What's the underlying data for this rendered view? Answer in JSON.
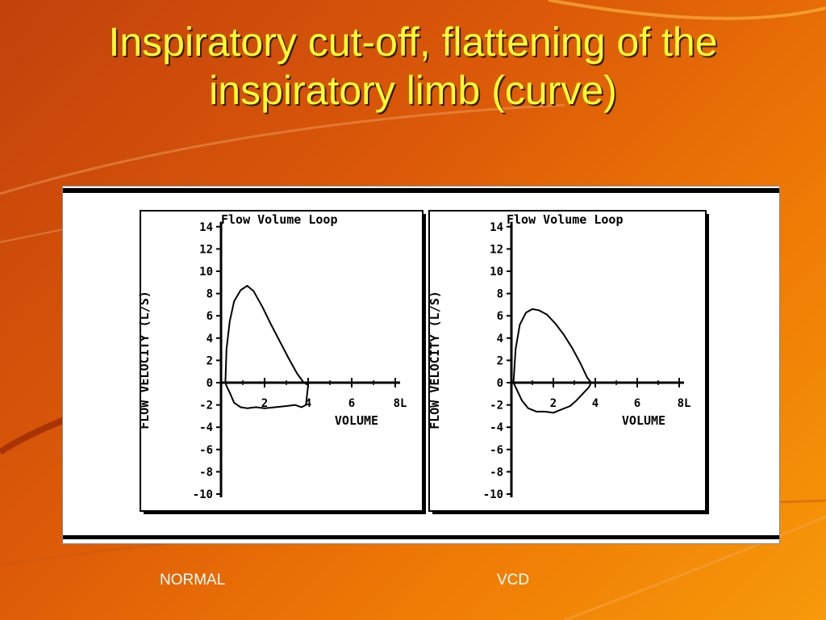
{
  "title": "Inspiratory cut-off, flattening of the inspiratory limb (curve)",
  "captions": {
    "normal": "NORMAL",
    "vcd": "VCD"
  },
  "colors": {
    "title": "#ffff33",
    "background": "#dc5a08",
    "plot_line": "#000000"
  },
  "chart_data": [
    {
      "type": "line",
      "title": "Flow Volume Loop",
      "xlabel": "VOLUME",
      "ylabel": "FLOW VELOCITY (L/S)",
      "xlim": [
        0,
        8
      ],
      "ylim": [
        -10,
        14
      ],
      "x_ticks": [
        "2",
        "4",
        "6",
        "8L"
      ],
      "y_ticks": [
        "14",
        "12",
        "10",
        "8",
        "6",
        "4",
        "2",
        "0",
        "-2",
        "-4",
        "-6",
        "-8",
        "-10"
      ],
      "series": [
        {
          "x": [
            0.2,
            0.25,
            0.4,
            0.6,
            0.9,
            1.2,
            1.5,
            1.9,
            2.3,
            2.7,
            3.1,
            3.5,
            3.8,
            4.0,
            3.9,
            3.7,
            3.4,
            3.0,
            2.5,
            2.0,
            1.6,
            1.2,
            0.9,
            0.6,
            0.4,
            0.25,
            0.2
          ],
          "y": [
            0.0,
            3.0,
            5.5,
            7.3,
            8.3,
            8.7,
            8.2,
            6.8,
            5.2,
            3.7,
            2.2,
            0.8,
            0.0,
            -0.2,
            -2.0,
            -2.2,
            -2.0,
            -2.1,
            -2.2,
            -2.3,
            -2.2,
            -2.3,
            -2.2,
            -1.8,
            -0.9,
            -0.3,
            0.0
          ]
        }
      ]
    },
    {
      "type": "line",
      "title": "Flow Volume Loop",
      "xlabel": "VOLUME",
      "ylabel": "FLOW VELOCITY (L/S)",
      "xlim": [
        0,
        8
      ],
      "ylim": [
        -10,
        14
      ],
      "x_ticks": [
        "2",
        "4",
        "6",
        "8L"
      ],
      "y_ticks": [
        "14",
        "12",
        "10",
        "8",
        "6",
        "4",
        "2",
        "0",
        "-2",
        "-4",
        "-6",
        "-8",
        "-10"
      ],
      "series": [
        {
          "x": [
            0.1,
            0.2,
            0.4,
            0.7,
            1.0,
            1.3,
            1.7,
            2.1,
            2.5,
            2.9,
            3.3,
            3.6,
            3.8,
            3.7,
            3.4,
            3.1,
            2.8,
            2.4,
            2.0,
            1.6,
            1.2,
            0.8,
            0.5,
            0.25,
            0.1
          ],
          "y": [
            0.0,
            3.0,
            5.2,
            6.3,
            6.6,
            6.5,
            6.1,
            5.3,
            4.3,
            3.1,
            1.7,
            0.5,
            0.0,
            -0.4,
            -1.0,
            -1.6,
            -2.1,
            -2.4,
            -2.7,
            -2.6,
            -2.6,
            -2.3,
            -1.6,
            -0.6,
            0.0
          ]
        }
      ]
    }
  ]
}
